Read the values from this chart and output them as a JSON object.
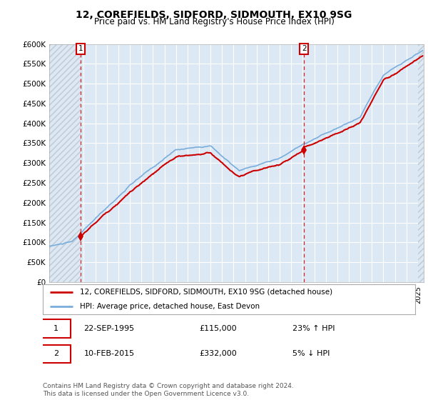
{
  "title": "12, COREFIELDS, SIDFORD, SIDMOUTH, EX10 9SG",
  "subtitle": "Price paid vs. HM Land Registry's House Price Index (HPI)",
  "ylim": [
    0,
    600000
  ],
  "yticks": [
    0,
    50000,
    100000,
    150000,
    200000,
    250000,
    300000,
    350000,
    400000,
    450000,
    500000,
    550000,
    600000
  ],
  "ytick_labels": [
    "£0",
    "£50K",
    "£100K",
    "£150K",
    "£200K",
    "£250K",
    "£300K",
    "£350K",
    "£400K",
    "£450K",
    "£500K",
    "£550K",
    "£600K"
  ],
  "transaction1": {
    "date_x": 1995.73,
    "price": 115000,
    "label": "1",
    "date_str": "22-SEP-1995",
    "price_str": "£115,000",
    "hpi_str": "23% ↑ HPI"
  },
  "transaction2": {
    "date_x": 2015.11,
    "price": 332000,
    "label": "2",
    "date_str": "10-FEB-2015",
    "price_str": "£332,000",
    "hpi_str": "5% ↓ HPI"
  },
  "legend1_label": "12, COREFIELDS, SIDFORD, SIDMOUTH, EX10 9SG (detached house)",
  "legend2_label": "HPI: Average price, detached house, East Devon",
  "footer": "Contains HM Land Registry data © Crown copyright and database right 2024.\nThis data is licensed under the Open Government Licence v3.0.",
  "red_color": "#cc0000",
  "blue_color": "#7aaddb",
  "bg_color": "#dce9f5",
  "grid_color": "#ffffff",
  "xlim_start": 1993.0,
  "xlim_end": 2025.5,
  "hatch_right_start": 2025.0
}
